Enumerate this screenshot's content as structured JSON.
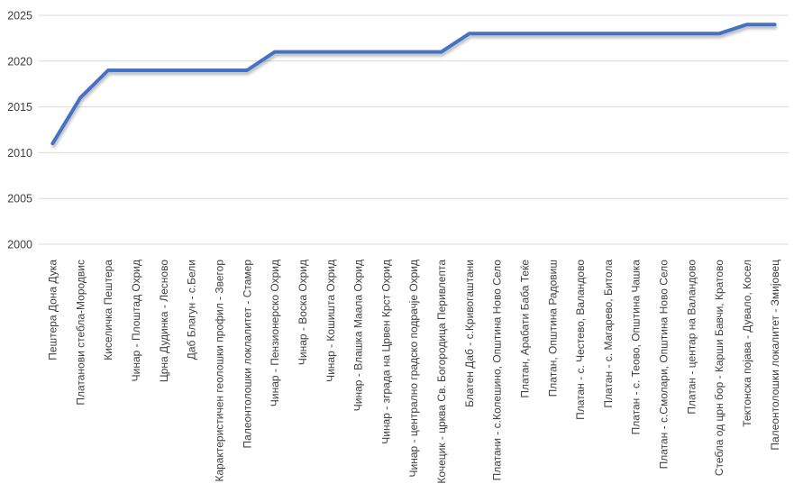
{
  "chart_data": {
    "type": "line",
    "title": "",
    "xlabel": "",
    "ylabel": "",
    "categories": [
      "Пештера Дона Дука",
      "Платанови стебла-Мородвис",
      "Киселичка Пештера",
      "Чинар - Плоштад Охрид",
      "Црна Дудинка - Лесново",
      "Даб Благун - с.Бели",
      "Карактеристичен геолошки профил - Звегор",
      "Палеонтолошки локлалитет - Стамер",
      "Чинар - Пензионерско Охрид",
      "Чинар - Воска Охрид",
      "Чинар - Кошишта Охрид",
      "Чинар - Влашка Маала Охрид",
      "Чинар - зграда на Црвен Крст Охрид",
      "Чинар - централно градско подрачје Охрид",
      "Кочецик - црква Св. Богородица Перивлепта",
      "Блатен Даб - с.Кривогаштани",
      "Платани - с.Колешино, Општина Ново Село",
      "Платан, Арабати Баба Теќе",
      "Платан, Општина Радовиш",
      "Платан - с. Честево, Валандово",
      "Платан - с. Магарево, Битола",
      "Платан - с. Теово, Општина Чашка",
      "Платан - с.Смолари, Општина Ново Село",
      "Платан - центар на Валандово",
      "Стебла од црн бор - Карши Бавчи, Кратово",
      "Тектонска појава - Дувало, Косел",
      "Палеонтолошки локалитет - Змијовец"
    ],
    "values": [
      2011,
      2016,
      2019,
      2019,
      2019,
      2019,
      2019,
      2019,
      2021,
      2021,
      2021,
      2021,
      2021,
      2021,
      2021,
      2023,
      2023,
      2023,
      2023,
      2023,
      2023,
      2023,
      2023,
      2023,
      2023,
      2024,
      2024
    ],
    "ylim": [
      2000,
      2025
    ],
    "ytick_step": 5,
    "yticks": [
      "2000",
      "2005",
      "2010",
      "2015",
      "2020",
      "2025"
    ],
    "grid": true,
    "legend_position": "none",
    "colors": {
      "line": "#4472C4",
      "gridline": "#D9D9D9",
      "tick_text": "#404040"
    }
  }
}
